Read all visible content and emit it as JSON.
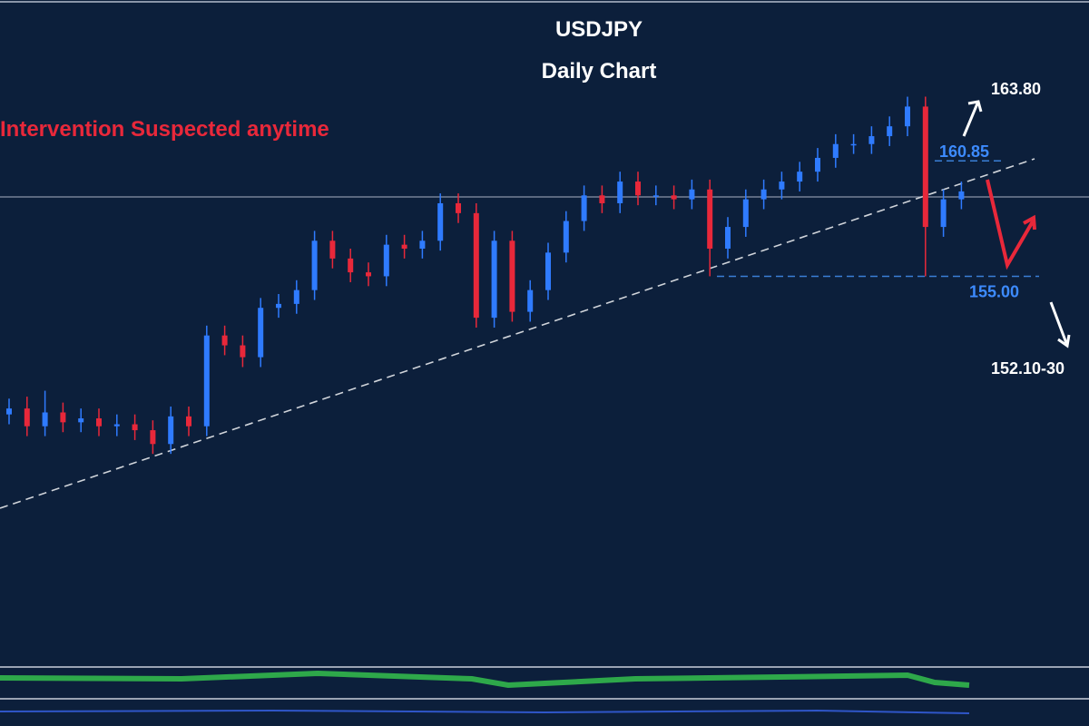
{
  "chart_data": {
    "type": "candlestick",
    "title": "USDJPY",
    "subtitle": "Daily Chart",
    "annotation": "Intervention Suspected anytime",
    "targets": [
      "163.80",
      "152.10-30"
    ],
    "levels": [
      {
        "value": 160.85,
        "label": "160.85"
      },
      {
        "value": 155.0,
        "label": "155.00"
      }
    ],
    "ylim": [
      135.2,
      169.0
    ],
    "up_color": "#2f7bff",
    "down_color": "#e8283a",
    "open": [
      148.0,
      148.3,
      147.4,
      148.1,
      147.6,
      147.8,
      147.4,
      147.5,
      147.2,
      146.5,
      147.9,
      147.4,
      152.0,
      151.5,
      150.9,
      153.4,
      153.6,
      154.3,
      156.8,
      155.9,
      155.2,
      155.0,
      156.6,
      156.4,
      156.8,
      158.7,
      158.2,
      152.9,
      156.8,
      153.2,
      154.3,
      156.2,
      157.8,
      159.1,
      158.7,
      159.8,
      159.1,
      159.1,
      158.9,
      159.4,
      156.4,
      157.5,
      158.9,
      159.4,
      159.8,
      160.3,
      161.0,
      161.7,
      161.7,
      162.1,
      162.6,
      163.6,
      157.5,
      158.9
    ],
    "high": [
      148.8,
      148.9,
      149.2,
      148.6,
      148.3,
      148.3,
      148.0,
      148.0,
      147.7,
      148.4,
      148.4,
      152.5,
      152.5,
      152.0,
      153.9,
      154.1,
      154.8,
      157.3,
      157.3,
      156.4,
      155.7,
      157.1,
      157.1,
      157.3,
      159.2,
      159.2,
      158.7,
      157.3,
      157.3,
      154.8,
      156.7,
      158.3,
      159.6,
      159.6,
      160.3,
      160.3,
      159.6,
      159.6,
      159.9,
      159.9,
      158.0,
      159.4,
      159.9,
      160.3,
      160.8,
      161.5,
      162.2,
      162.2,
      162.6,
      163.1,
      164.1,
      164.1,
      159.4,
      159.8
    ],
    "low": [
      147.5,
      146.9,
      146.9,
      147.1,
      147.1,
      146.9,
      146.9,
      146.7,
      146.0,
      146.0,
      146.9,
      146.9,
      151.0,
      150.4,
      150.4,
      152.9,
      153.1,
      153.8,
      155.4,
      154.7,
      154.5,
      154.5,
      155.9,
      155.9,
      156.3,
      157.7,
      152.4,
      152.4,
      152.7,
      152.7,
      153.8,
      155.7,
      157.3,
      158.2,
      158.2,
      158.6,
      158.6,
      158.4,
      158.4,
      155.0,
      155.9,
      157.0,
      158.4,
      158.9,
      159.3,
      159.8,
      160.5,
      161.2,
      161.2,
      161.6,
      162.1,
      155.0,
      157.0,
      158.4
    ],
    "close": [
      148.3,
      147.4,
      148.1,
      147.6,
      147.8,
      147.4,
      147.5,
      147.2,
      146.5,
      147.9,
      147.4,
      152.0,
      151.5,
      150.9,
      153.4,
      153.6,
      154.3,
      156.8,
      155.9,
      155.2,
      155.0,
      156.6,
      156.4,
      156.8,
      158.7,
      158.2,
      152.9,
      156.8,
      153.2,
      154.3,
      156.2,
      157.8,
      159.1,
      158.7,
      159.8,
      159.1,
      159.1,
      158.9,
      159.4,
      156.4,
      157.5,
      158.9,
      159.4,
      159.8,
      160.3,
      161.0,
      161.7,
      161.7,
      162.1,
      162.6,
      163.6,
      157.5,
      158.9,
      159.3
    ]
  }
}
